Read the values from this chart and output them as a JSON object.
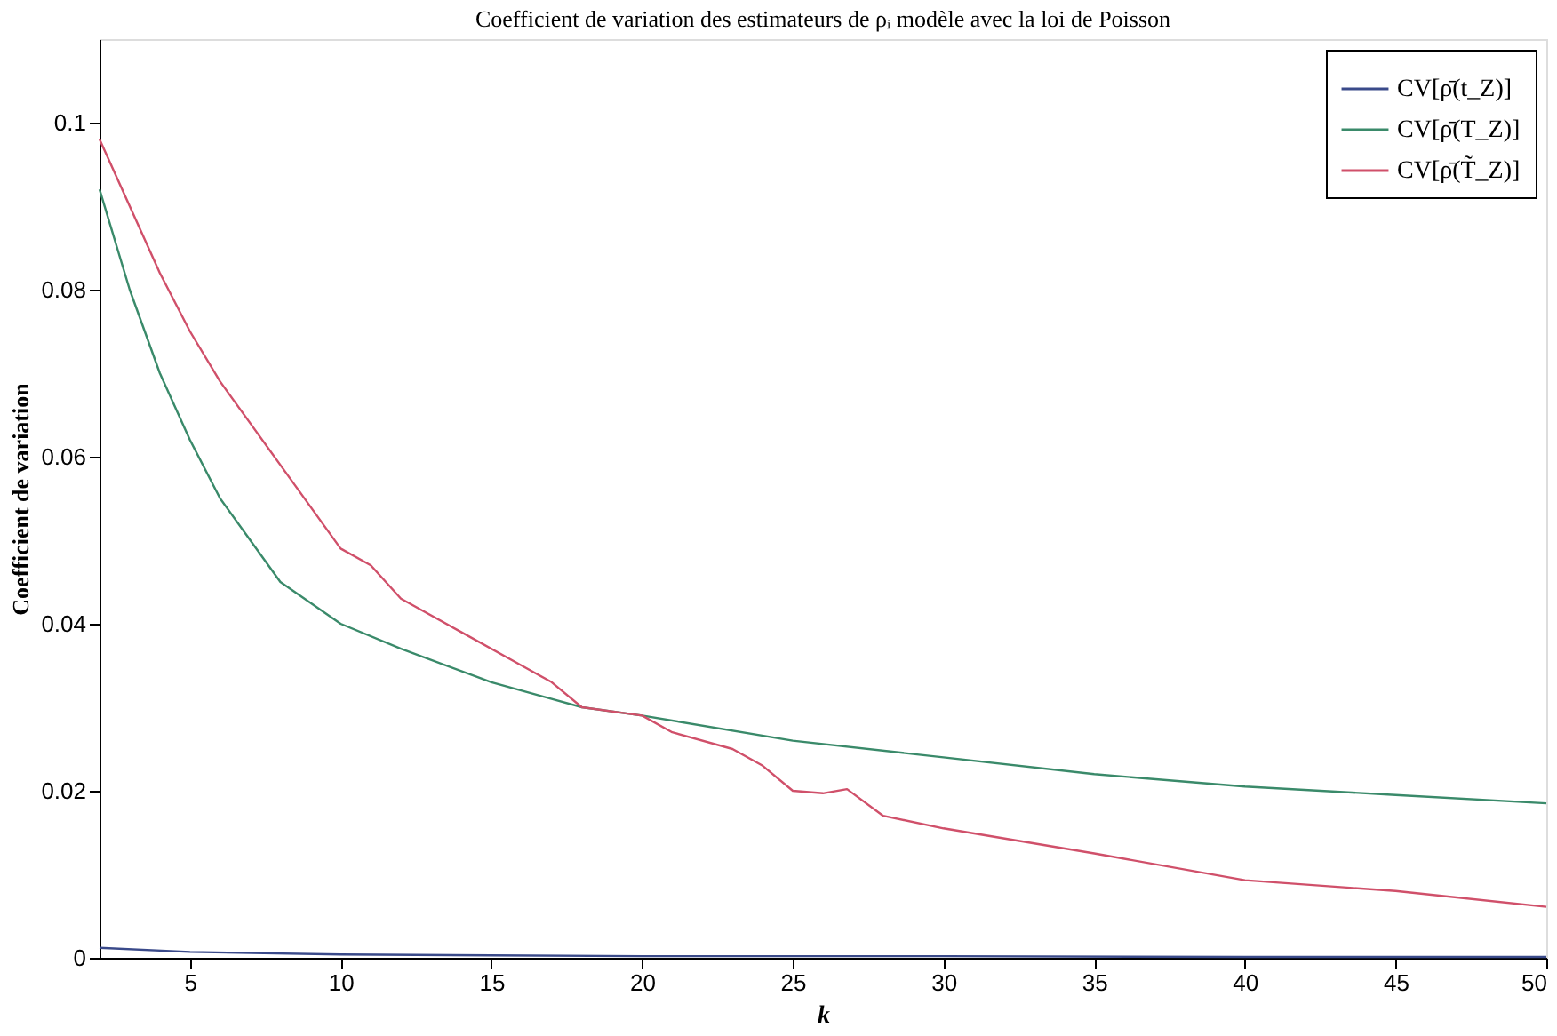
{
  "chart_data": {
    "type": "line",
    "title": "Coefficient de variation des estimateurs de ρᵢ modèle avec la loi de Poisson",
    "xlabel": "k",
    "ylabel": "Coefficient de variation",
    "xlim": [
      2,
      50
    ],
    "xticks": [
      5,
      10,
      15,
      20,
      25,
      30,
      35,
      40,
      45,
      50
    ],
    "ylim": [
      0,
      0.11
    ],
    "yticks": [
      0,
      0.02,
      0.04,
      0.06,
      0.08,
      0.1
    ],
    "grid": false,
    "legend": "top right",
    "marker": "none",
    "line_style": "solid",
    "series": [
      {
        "name": "CV[ρ̄(t_Z)]",
        "color": "#3a4a8a",
        "x": [
          2,
          5,
          10,
          15,
          20,
          30,
          40,
          50
        ],
        "values": [
          0.0012,
          0.0007,
          0.0004,
          0.0003,
          0.0002,
          0.0002,
          0.0001,
          0.0001
        ]
      },
      {
        "name": "CV[ρ̄(T_Z)]",
        "color": "#3a8a6a",
        "x": [
          2,
          3,
          4,
          5,
          6,
          7,
          8,
          10,
          12,
          15,
          17,
          18,
          20,
          25,
          30,
          35,
          40,
          45,
          50
        ],
        "values": [
          0.092,
          0.08,
          0.07,
          0.062,
          0.055,
          0.05,
          0.045,
          0.04,
          0.037,
          0.033,
          0.031,
          0.03,
          0.029,
          0.026,
          0.024,
          0.022,
          0.0205,
          0.0195,
          0.0185
        ]
      },
      {
        "name": "CV[ρ̄(T̃_Z)]",
        "color": "#d0506a",
        "x": [
          2,
          3,
          4,
          5,
          6,
          7,
          8,
          9,
          10,
          11,
          12,
          14,
          16,
          17,
          18,
          20,
          21,
          23,
          24,
          25,
          26,
          26.8,
          28,
          30,
          35,
          40,
          45,
          50
        ],
        "values": [
          0.098,
          0.09,
          0.082,
          0.075,
          0.069,
          0.064,
          0.059,
          0.054,
          0.049,
          0.047,
          0.043,
          0.039,
          0.035,
          0.033,
          0.03,
          0.029,
          0.027,
          0.025,
          0.023,
          0.02,
          0.0197,
          0.0202,
          0.017,
          0.0155,
          0.0125,
          0.0093,
          0.008,
          0.0061
        ]
      }
    ]
  }
}
